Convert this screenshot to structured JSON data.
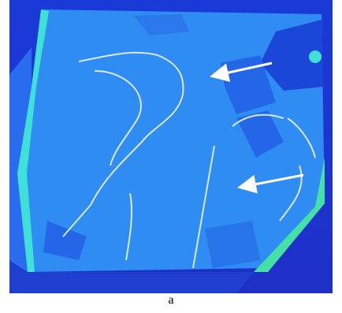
{
  "caption": "a"
}
